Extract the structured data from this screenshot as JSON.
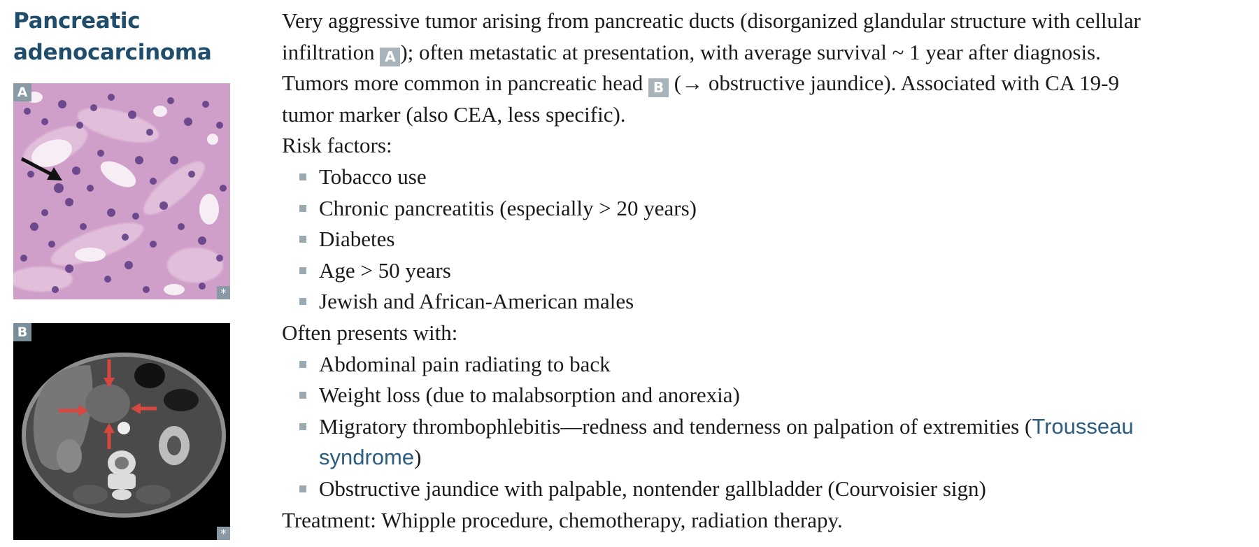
{
  "heading": {
    "line1": "Pancreatic",
    "line2": "adenocarcinoma"
  },
  "figures": {
    "a": {
      "label": "A",
      "mark": "*",
      "kind": "histology-image"
    },
    "b": {
      "label": "B",
      "mark": "*",
      "kind": "ct-scan-image"
    }
  },
  "intro": {
    "l1": "Very aggressive tumor arising from pancreatic ducts (disorganized glandular structure with cellular",
    "l2a": "infiltration ",
    "l2_label": "A",
    "l2b": "); often metastatic at presentation, with average survival ~ 1 year after diagnosis.",
    "l3a": "Tumors more common in pancreatic head ",
    "l3_label": "B",
    "l3b": " (→ obstructive jaundice). Associated with CA 19-9",
    "l4": "tumor marker (also CEA, less specific)."
  },
  "risk": {
    "heading": "Risk factors:",
    "items": [
      "Tobacco use",
      "Chronic pancreatitis (especially > 20 years)",
      "Diabetes",
      "Age > 50 years",
      "Jewish and African-American males"
    ]
  },
  "presents": {
    "heading": "Often presents with:",
    "item1": "Abdominal pain radiating to back",
    "item2": "Weight loss (due to malabsorption and anorexia)",
    "item3_text": "Migratory thrombophlebitis—redness and tenderness on palpation of extremities (",
    "item3_link1": "Trousseau",
    "item3_link2": "syndrome",
    "item3_end": ")",
    "item4": "Obstructive jaundice with palpable, nontender gallbladder (Courvoisier sign)"
  },
  "treatment": "Treatment: Whipple procedure, chemotherapy, radiation therapy.",
  "colors": {
    "heading": "#1f4d6b",
    "link": "#2a5d80",
    "bullet": "#9aaab3",
    "label_bg": "#a9b4ba"
  }
}
